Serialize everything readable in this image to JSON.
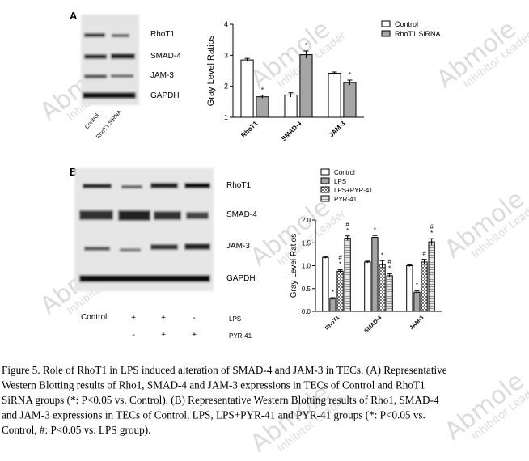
{
  "panel_a": {
    "letter": "A",
    "bands": [
      "RhoT1",
      "SMAD-4",
      "JAM-3",
      "GAPDH"
    ],
    "lanes": [
      "Control",
      "RhoT1 SiRNA"
    ]
  },
  "panel_b": {
    "letter": "B",
    "bands": [
      "RhoT1",
      "SMAD-4",
      "JAM-3",
      "GAPDH"
    ],
    "control": "Control",
    "rows": [
      {
        "label": "LPS",
        "marks": [
          "+",
          "+",
          "-"
        ]
      },
      {
        "label": "PYR-41",
        "marks": [
          "-",
          "+",
          "+"
        ]
      }
    ]
  },
  "watermark": {
    "brand": "Abmole",
    "tagline": "Inhibitor Leader"
  },
  "chart_data": [
    {
      "type": "bar",
      "y_label": "Gray Level Ratios",
      "categories": [
        "RhoT1",
        "SMAD-4",
        "JAM-3"
      ],
      "ylim": [
        1,
        4
      ],
      "yticks": [
        1,
        2,
        3,
        4
      ],
      "series": [
        {
          "name": "Control",
          "color": "#ffffff",
          "values": [
            2.85,
            1.72,
            2.42
          ],
          "errors": [
            0.05,
            0.07,
            0.04
          ],
          "annotations": [
            [],
            [],
            []
          ]
        },
        {
          "name": "RhoT1 SiRNA",
          "color": "#a6a6a6",
          "values": [
            1.66,
            3.02,
            2.12
          ],
          "errors": [
            0.05,
            0.12,
            0.08
          ],
          "annotations": [
            [
              "*"
            ],
            [
              "*"
            ],
            [
              "*"
            ]
          ]
        }
      ]
    },
    {
      "type": "bar",
      "y_label": "Gray Level Ratios",
      "categories": [
        "RhoT1",
        "SMAD-4",
        "JAM-3"
      ],
      "ylim": [
        0,
        2
      ],
      "yticks": [
        {
          "value": 0,
          "label": "0.0"
        },
        {
          "value": 0.5,
          "label": "0.5"
        },
        {
          "value": 1,
          "label": "1.0"
        },
        {
          "value": 1.5,
          "label": "1.5"
        },
        {
          "value": 2,
          "label": "2.0"
        }
      ],
      "series": [
        {
          "name": "Control",
          "color": "#ffffff",
          "values": [
            1.18,
            1.08,
            1.0
          ],
          "errors": [
            0.02,
            0.02,
            0.02
          ],
          "annotations": [
            [],
            [],
            []
          ]
        },
        {
          "name": "LPS",
          "color": "#a6a6a6",
          "values": [
            0.28,
            1.62,
            0.42
          ],
          "errors": [
            0.02,
            0.04,
            0.03
          ],
          "annotations": [
            [
              "*"
            ],
            [
              "*"
            ],
            [
              "*"
            ]
          ]
        },
        {
          "name": "LPS+PYR-41",
          "color": "#ffffff",
          "pattern": "checker",
          "values": [
            0.88,
            1.03,
            1.08
          ],
          "errors": [
            0.03,
            0.08,
            0.06
          ],
          "annotations": [
            [
              "#",
              "*"
            ],
            [
              "*"
            ],
            [
              "#"
            ]
          ]
        },
        {
          "name": "PYR-41",
          "color": "#d9d9d9",
          "pattern": "stripe",
          "values": [
            1.6,
            0.78,
            1.52
          ],
          "errors": [
            0.05,
            0.04,
            0.07
          ],
          "annotations": [
            [
              "#",
              "*"
            ],
            [
              "#",
              "*"
            ],
            [
              "#",
              "*"
            ]
          ]
        }
      ]
    }
  ],
  "caption": [
    "Figure 5. Role of RhoT1 in LPS induced alteration of SMAD-4 and JAM-3 in TECs. (A) Representative",
    "Western Blotting results of Rho1, SMAD-4 and JAM-3 expressions in TECs of Control and RhoT1",
    "SiRNA groups (*: P<0.05 vs. Control). (B) Representative Western Blotting results of Rho1, SMAD-4",
    "and JAM-3 expressions in TECs of Control, LPS, LPS+PYR-41 and PYR-41 groups (*: P<0.05 vs.",
    "Control, #: P<0.05 vs. LPS group)."
  ]
}
